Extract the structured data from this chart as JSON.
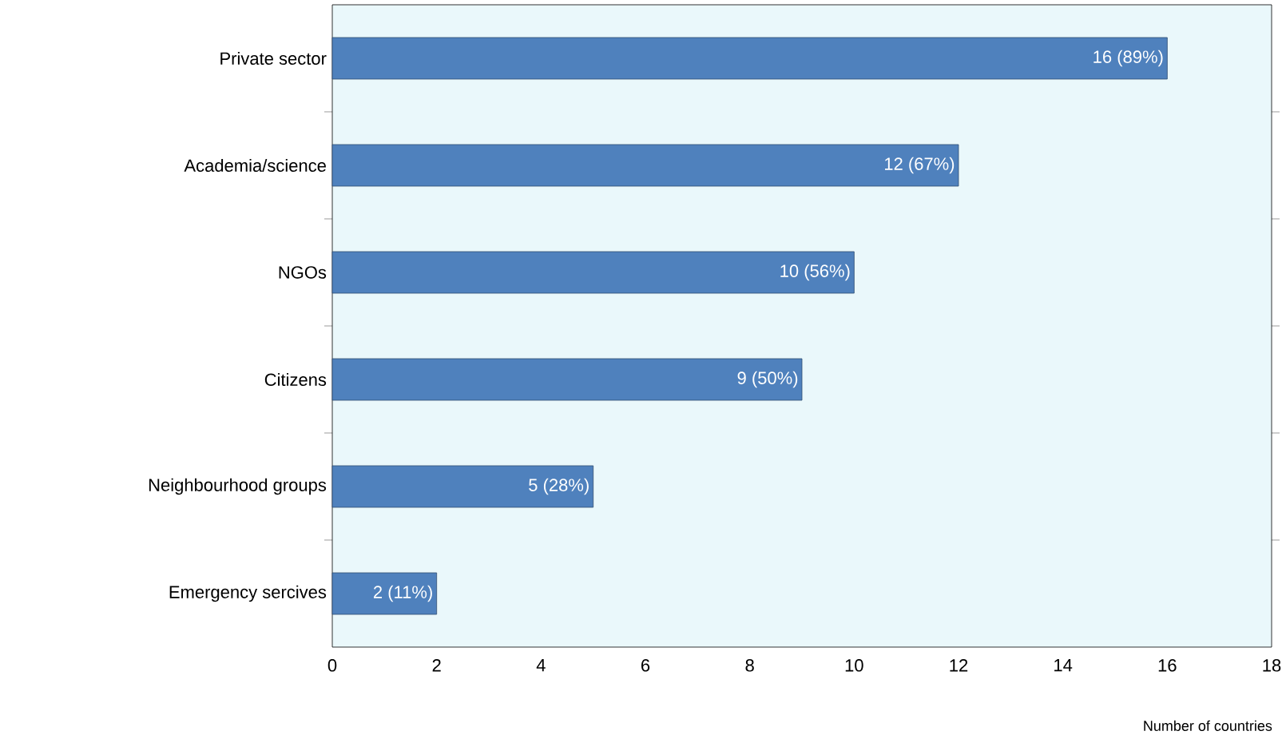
{
  "chart_data": {
    "type": "bar",
    "orientation": "horizontal",
    "categories": [
      "Private sector",
      "Academia/science",
      "NGOs",
      "Citizens",
      "Neighbourhood groups",
      "Emergency sercives"
    ],
    "values": [
      16,
      12,
      10,
      9,
      5,
      2
    ],
    "value_labels": [
      "16 (89%)",
      "12 (67%)",
      "10 (56%)",
      "9 (50%)",
      "5 (28%)",
      "2 (11%)"
    ],
    "color": "#4f81bd",
    "xlim": [
      0,
      18
    ],
    "xticks": [
      0,
      2,
      4,
      6,
      8,
      10,
      12,
      14,
      16,
      18
    ],
    "xlabel": "Number of countries",
    "grid": false
  }
}
